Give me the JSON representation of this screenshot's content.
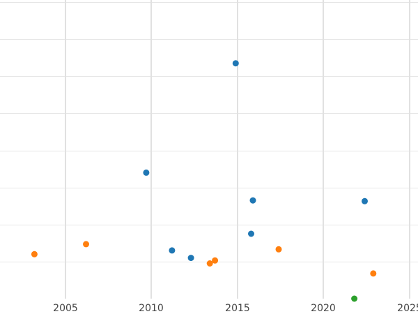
{
  "chart_data": {
    "type": "scatter",
    "title": "",
    "xlabel": "",
    "ylabel": "",
    "xlim": [
      2001.2,
      2025.5
    ],
    "ylim": [
      0,
      8
    ],
    "x_ticks": [
      2005,
      2010,
      2015,
      2020,
      2025
    ],
    "x_tick_labels": [
      "2005",
      "2010",
      "2015",
      "2020",
      "2025"
    ],
    "y_gridlines": [
      1,
      2,
      3,
      4,
      5,
      6,
      7,
      8
    ],
    "grid": true,
    "legend": "none",
    "series": [
      {
        "color": "#1f77b4",
        "points": [
          {
            "x": 2014.9,
            "y": 6.35
          },
          {
            "x": 2009.7,
            "y": 3.4
          },
          {
            "x": 2015.9,
            "y": 2.65
          },
          {
            "x": 2022.4,
            "y": 2.63
          },
          {
            "x": 2015.8,
            "y": 1.75
          },
          {
            "x": 2011.2,
            "y": 1.3
          },
          {
            "x": 2012.3,
            "y": 1.1
          }
        ]
      },
      {
        "color": "#ff7f0e",
        "points": [
          {
            "x": 2003.2,
            "y": 1.2
          },
          {
            "x": 2006.2,
            "y": 1.47
          },
          {
            "x": 2017.4,
            "y": 1.33
          },
          {
            "x": 2013.7,
            "y": 1.03
          },
          {
            "x": 2013.4,
            "y": 0.95
          },
          {
            "x": 2022.9,
            "y": 0.68
          }
        ]
      },
      {
        "color": "#2ca02c",
        "points": [
          {
            "x": 2021.8,
            "y": 0.0
          }
        ]
      }
    ]
  }
}
